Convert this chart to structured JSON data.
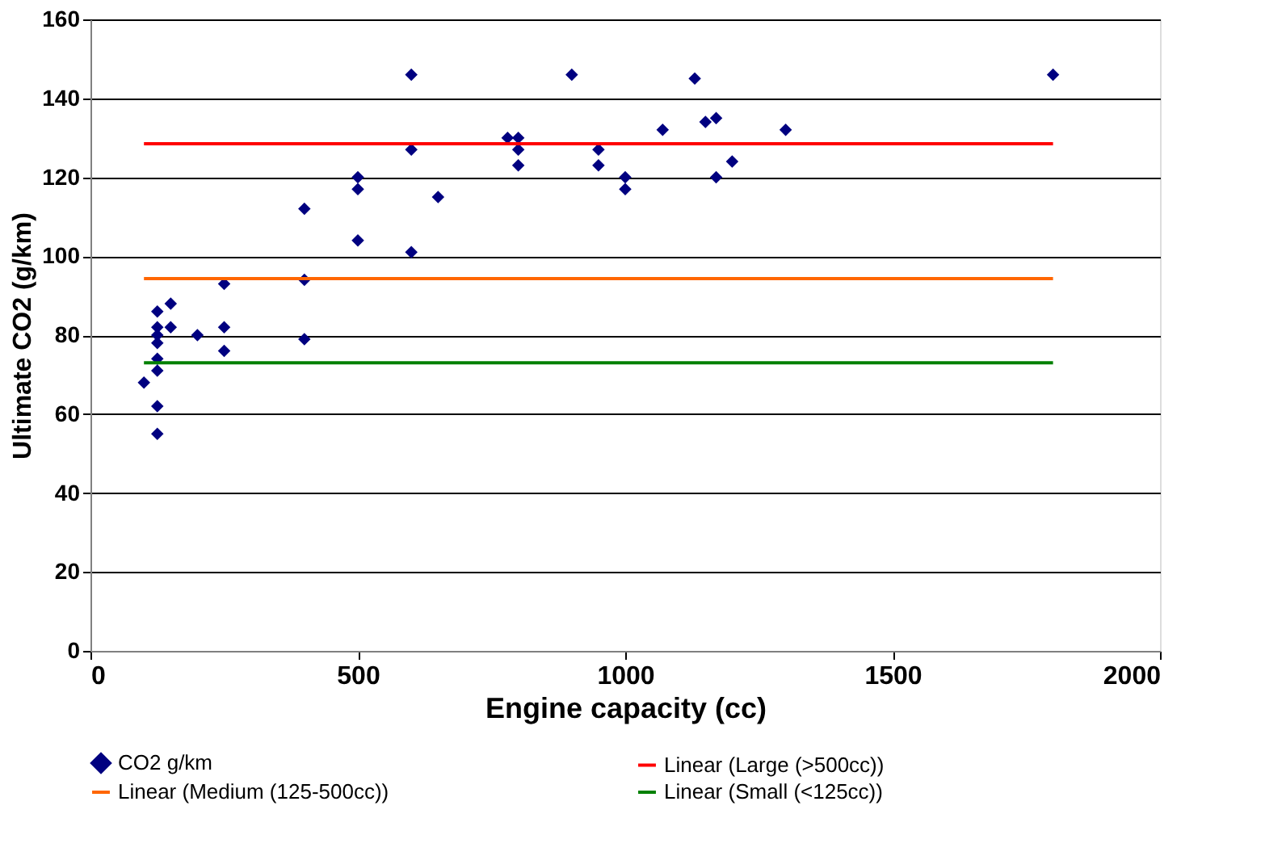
{
  "chart_data": {
    "type": "scatter",
    "xlabel": "Engine capacity (cc)",
    "ylabel": "Ultimate CO2 (g/km)",
    "xlim": [
      0,
      2000
    ],
    "xticks": [
      0,
      500,
      1000,
      1500,
      2000
    ],
    "ylim": [
      0,
      160
    ],
    "yticks": [
      0,
      20,
      40,
      60,
      80,
      100,
      120,
      140,
      160
    ],
    "grid": "y",
    "legend": "bottom",
    "series": [
      {
        "name": "CO2 g/km",
        "marker": "diamond",
        "color": "#000080",
        "x": [
          100,
          125,
          125,
          125,
          125,
          125,
          125,
          125,
          125,
          150,
          150,
          200,
          250,
          250,
          250,
          400,
          400,
          400,
          500,
          500,
          500,
          600,
          600,
          600,
          650,
          780,
          800,
          800,
          800,
          900,
          950,
          950,
          1000,
          1000,
          1070,
          1130,
          1150,
          1170,
          1170,
          1200,
          1300,
          1800
        ],
        "values": [
          68,
          86,
          82,
          80,
          78,
          74,
          71,
          62,
          55,
          88,
          82,
          80,
          93,
          82,
          76,
          112,
          94,
          79,
          120,
          117,
          104,
          146,
          127,
          101,
          115,
          130,
          130,
          127,
          123,
          146,
          127,
          123,
          120,
          117,
          132,
          145,
          134,
          135,
          120,
          124,
          132,
          146
        ]
      },
      {
        "name": "Linear (Large (>500cc))",
        "type": "line",
        "marker": "none",
        "line_style": "solid",
        "color": "#ff0000",
        "x": [
          100,
          1800
        ],
        "values": [
          128.5,
          128.5
        ]
      },
      {
        "name": "Linear (Medium (125-500cc))",
        "type": "line",
        "marker": "none",
        "line_style": "solid",
        "color": "#ff6600",
        "x": [
          100,
          1800
        ],
        "values": [
          94.3,
          94.3
        ]
      },
      {
        "name": "Linear (Small (<125cc))",
        "type": "line",
        "marker": "none",
        "line_style": "solid",
        "color": "#008000",
        "x": [
          100,
          1800
        ],
        "values": [
          73,
          73
        ]
      }
    ]
  }
}
